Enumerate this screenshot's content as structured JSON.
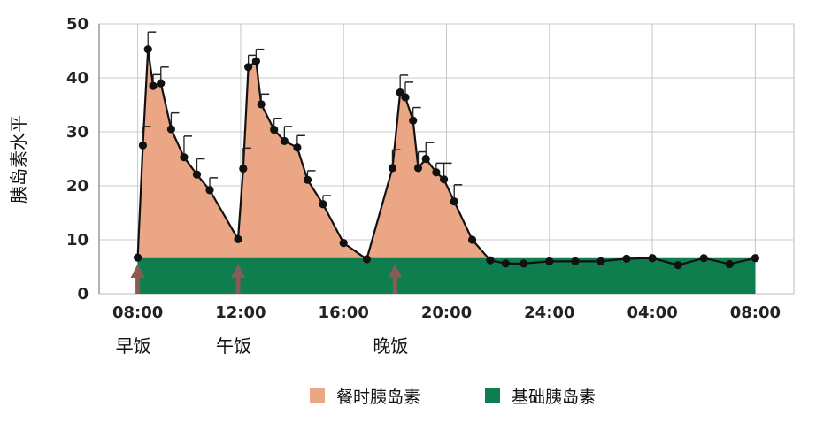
{
  "chart_data": {
    "type": "area",
    "ylabel": "胰岛素水平",
    "ylim": [
      0,
      50
    ],
    "yticks": [
      "0",
      "10",
      "20",
      "30",
      "40",
      "50"
    ],
    "xlim": [
      6.5,
      33.5
    ],
    "xticks": [
      {
        "x": 8,
        "label": "08:00"
      },
      {
        "x": 12,
        "label": "12:00"
      },
      {
        "x": 16,
        "label": "16:00"
      },
      {
        "x": 20,
        "label": "20:00"
      },
      {
        "x": 24,
        "label": "24:00"
      },
      {
        "x": 28,
        "label": "04:00"
      },
      {
        "x": 32,
        "label": "08:00"
      }
    ],
    "meals": [
      {
        "x": 8.0,
        "label": "早饭"
      },
      {
        "x": 11.9,
        "label": "午饭"
      },
      {
        "x": 18.0,
        "label": "晚饭"
      }
    ],
    "grid": true,
    "legend_position": "bottom",
    "series": [
      {
        "name": "餐时胰岛素",
        "color": "#EBA785",
        "x": [
          8.0,
          8.2,
          8.4,
          8.6,
          8.9,
          9.3,
          9.8,
          10.3,
          10.8,
          11.9,
          12.1,
          12.3,
          12.6,
          12.8,
          13.3,
          13.7,
          14.2,
          14.6,
          15.2,
          16.0,
          16.9,
          17.9,
          18.2,
          18.4,
          18.7,
          18.9,
          19.2,
          19.6,
          19.9,
          20.3,
          21.0,
          21.7,
          22.3,
          23.0
        ],
        "values": [
          6.7,
          27.5,
          45.3,
          38.5,
          39.0,
          30.5,
          25.3,
          22.1,
          19.2,
          10.1,
          23.2,
          42.0,
          43.1,
          35.1,
          30.4,
          28.3,
          27.1,
          21.1,
          16.6,
          9.4,
          6.4,
          23.3,
          37.3,
          36.4,
          32.1,
          23.3,
          25.0,
          22.5,
          21.2,
          17.1,
          10.0,
          6.2,
          5.6,
          5.6
        ]
      },
      {
        "name": "基础胰岛素",
        "color": "#0E7E4F",
        "level": 6.6,
        "x": [
          23.0,
          24.0,
          25.0,
          26.0,
          27.0,
          28.0,
          29.0,
          30.0,
          31.0,
          32.0
        ],
        "values": [
          5.6,
          6.0,
          6.0,
          6.0,
          6.5,
          6.6,
          5.3,
          6.6,
          5.5,
          6.6
        ]
      }
    ],
    "error_bars_upper": [
      null,
      31,
      48.5,
      40.6,
      42,
      33.5,
      29.2,
      25,
      21.5,
      null,
      27,
      44.2,
      45.3,
      37,
      32.5,
      31,
      29.3,
      22.8,
      18.2,
      null,
      null,
      26.7,
      40.5,
      39.2,
      34.5,
      26.3,
      28,
      24.2,
      24.2,
      20.2,
      null,
      null,
      null,
      null
    ]
  },
  "legend": [
    {
      "label": "餐时胰岛素",
      "color": "#EBA785"
    },
    {
      "label": "基础胰岛素",
      "color": "#0E7E4F"
    }
  ]
}
